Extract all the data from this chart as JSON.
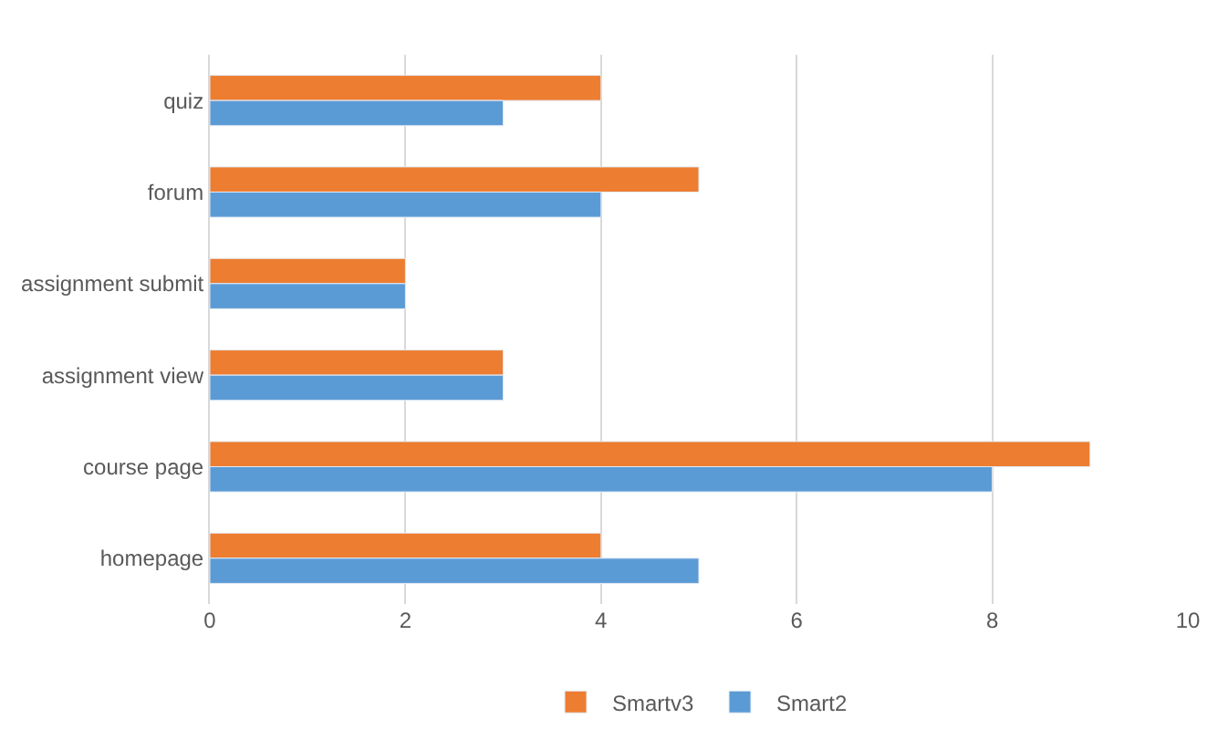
{
  "chart_data": {
    "type": "bar",
    "orientation": "horizontal",
    "categories": [
      "quiz",
      "forum",
      "assignment submit",
      "assignment view",
      "course page",
      "homepage"
    ],
    "series": [
      {
        "name": "Smartv3",
        "color": "#ed7d31",
        "values": [
          4,
          5,
          2,
          3,
          9,
          4
        ]
      },
      {
        "name": "Smart2",
        "color": "#5b9bd5",
        "values": [
          3,
          4,
          2,
          3,
          8,
          5
        ]
      }
    ],
    "xlim": [
      0,
      10
    ],
    "xticks": [
      0,
      2,
      4,
      6,
      8,
      10
    ],
    "grid": "x",
    "legend": "bottom"
  }
}
